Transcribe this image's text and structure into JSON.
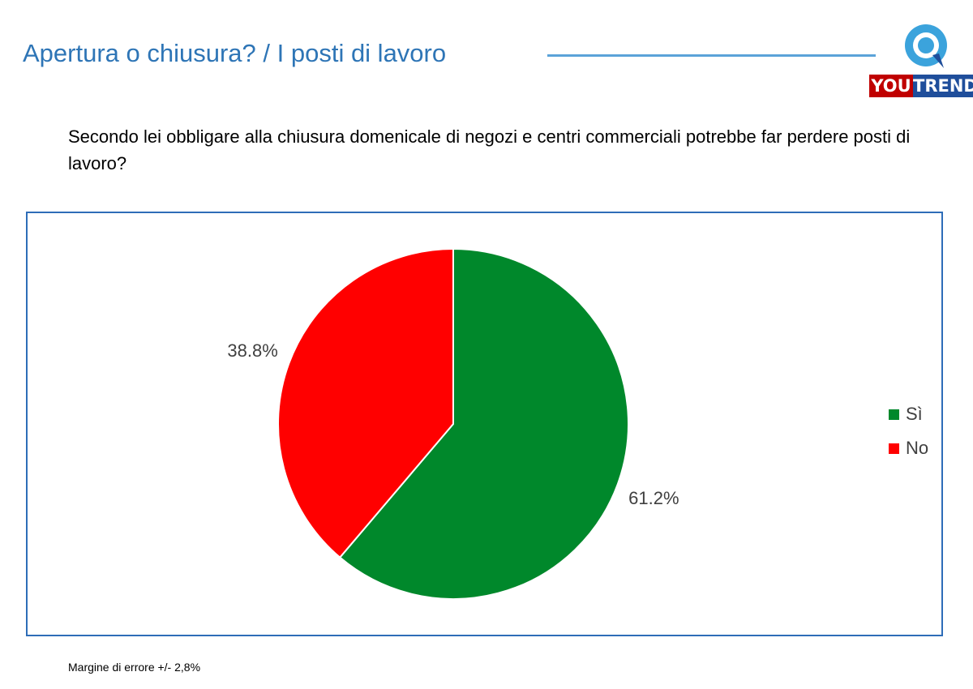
{
  "header": {
    "title": "Apertura o chiusura? / I posti di lavoro",
    "logo": {
      "part1": "YOU",
      "part2": "TREND",
      "icon": "speech-bubble-q-icon"
    }
  },
  "question": "Secondo lei obbligare alla chiusura domenicale di negozi e centri commerciali potrebbe far perdere posti di lavoro?",
  "chart_data": {
    "type": "pie",
    "title": "",
    "slices": [
      {
        "label": "Sì",
        "value": 61.2,
        "display": "61.2%",
        "color": "#00882B"
      },
      {
        "label": "No",
        "value": 38.8,
        "display": "38.8%",
        "color": "#FF0000"
      }
    ],
    "start_angle": "12 o'clock, clockwise",
    "legend_position": "right"
  },
  "footnote": "Margine di errore +/- 2,8%",
  "colors": {
    "accent": "#2E75B6",
    "frame": "#2E6DB8",
    "logo_red": "#C00000",
    "logo_blue": "#1F4E9B"
  }
}
